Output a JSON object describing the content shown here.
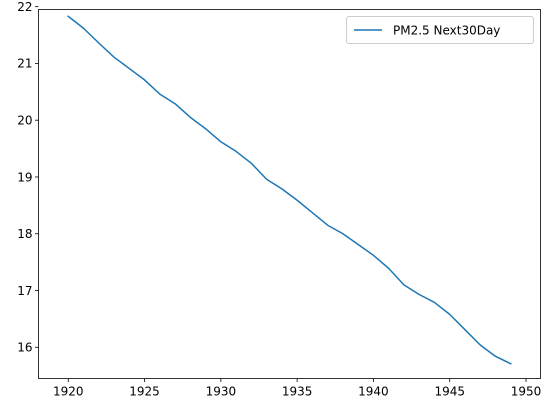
{
  "chart_data": {
    "type": "line",
    "title": "",
    "xlabel": "",
    "ylabel": "",
    "xlim": [
      1918.05,
      1950.95
    ],
    "ylim": [
      15.45,
      21.95
    ],
    "grid": false,
    "legend_position": "top-right",
    "x_ticks": [
      1920,
      1925,
      1930,
      1935,
      1940,
      1945,
      1950
    ],
    "y_ticks": [
      16,
      17,
      18,
      19,
      20,
      21,
      22
    ],
    "series": [
      {
        "name": "PM2.5 Next30Day",
        "color": "#1f77b4",
        "x": [
          1920,
          1921,
          1922,
          1923,
          1924,
          1925,
          1926,
          1927,
          1928,
          1929,
          1930,
          1931,
          1932,
          1933,
          1934,
          1935,
          1936,
          1937,
          1938,
          1939,
          1940,
          1941,
          1942,
          1943,
          1944,
          1945,
          1946,
          1947,
          1948,
          1949
        ],
        "y": [
          21.83,
          21.62,
          21.36,
          21.11,
          20.91,
          20.71,
          20.46,
          20.29,
          20.05,
          19.85,
          19.62,
          19.45,
          19.24,
          18.96,
          18.79,
          18.59,
          18.37,
          18.15,
          18.0,
          17.81,
          17.62,
          17.39,
          17.1,
          16.93,
          16.79,
          16.58,
          16.31,
          16.04,
          15.84,
          15.71
        ]
      }
    ]
  }
}
